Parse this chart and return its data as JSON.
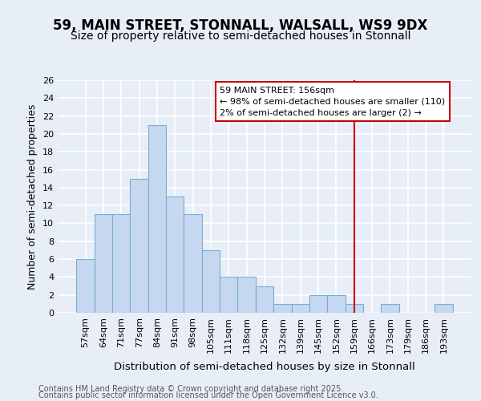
{
  "title": "59, MAIN STREET, STONNALL, WALSALL, WS9 9DX",
  "subtitle": "Size of property relative to semi-detached houses in Stonnall",
  "xlabel": "Distribution of semi-detached houses by size in Stonnall",
  "ylabel": "Number of semi-detached properties",
  "categories": [
    "57sqm",
    "64sqm",
    "71sqm",
    "77sqm",
    "84sqm",
    "91sqm",
    "98sqm",
    "105sqm",
    "111sqm",
    "118sqm",
    "125sqm",
    "132sqm",
    "139sqm",
    "145sqm",
    "152sqm",
    "159sqm",
    "166sqm",
    "173sqm",
    "179sqm",
    "186sqm",
    "193sqm"
  ],
  "values": [
    6,
    11,
    11,
    15,
    21,
    13,
    11,
    7,
    4,
    4,
    3,
    1,
    1,
    2,
    2,
    1,
    0,
    1,
    0,
    0,
    1
  ],
  "bar_color": "#c5d8f0",
  "bar_edge_color": "#7aadd4",
  "background_color": "#e8eef8",
  "grid_color": "#ffffff",
  "vline_x_index": 15,
  "vline_color": "#cc0000",
  "annotation_line1": "59 MAIN STREET: 156sqm",
  "annotation_line2": "← 98% of semi-detached houses are smaller (110)",
  "annotation_line3": "2% of semi-detached houses are larger (2) →",
  "annotation_box_color": "#cc0000",
  "annotation_fontsize": 8,
  "title_fontsize": 12,
  "subtitle_fontsize": 10,
  "xlabel_fontsize": 9.5,
  "ylabel_fontsize": 9,
  "tick_fontsize": 8,
  "ylim": [
    0,
    26
  ],
  "yticks": [
    0,
    2,
    4,
    6,
    8,
    10,
    12,
    14,
    16,
    18,
    20,
    22,
    24,
    26
  ],
  "footer_line1": "Contains HM Land Registry data © Crown copyright and database right 2025.",
  "footer_line2": "Contains public sector information licensed under the Open Government Licence v3.0.",
  "footer_fontsize": 7
}
